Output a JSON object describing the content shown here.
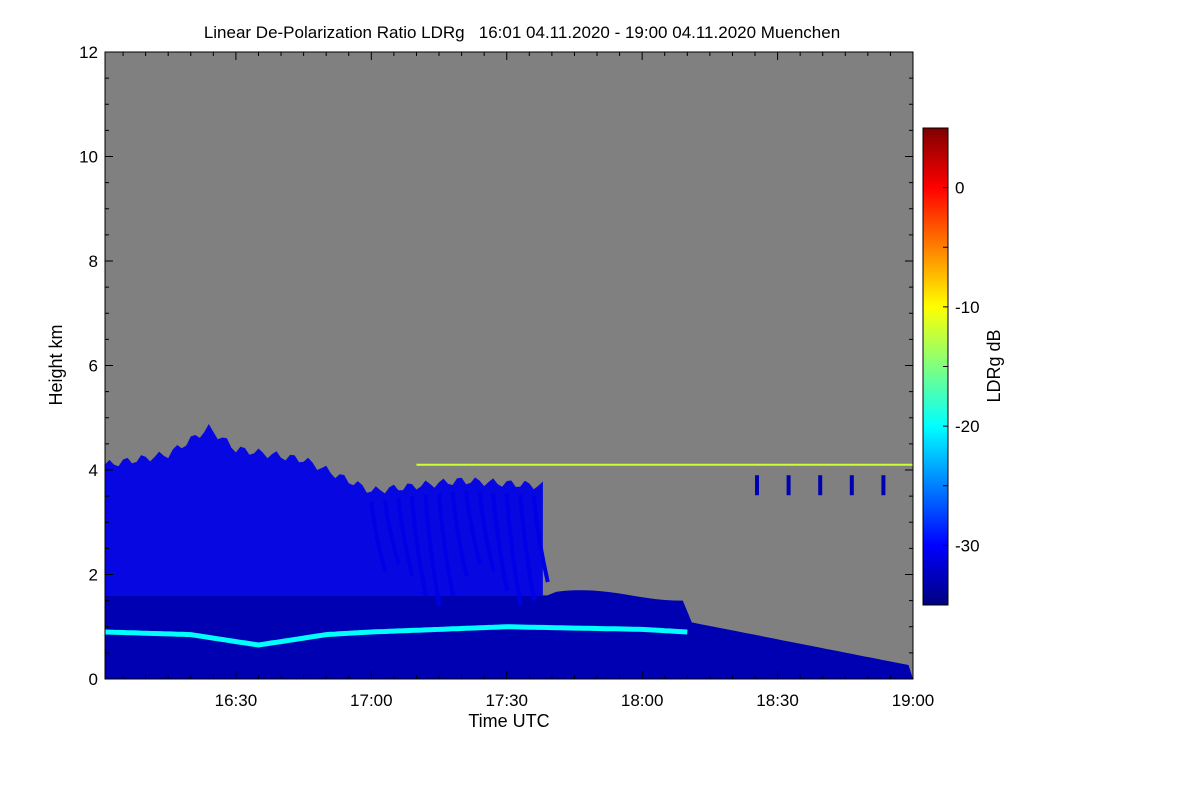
{
  "chart_data": {
    "type": "heatmap",
    "title": "Linear De-Polarization Ratio LDRg   16:01 04.11.2020 - 19:00 04.11.2020 Muenchen",
    "xlabel": "Time UTC",
    "ylabel": "Height km",
    "x_range": [
      "16:01",
      "19:00"
    ],
    "x_ticks": [
      "16:30",
      "17:00",
      "17:30",
      "18:00",
      "18:30",
      "19:00"
    ],
    "ylim": [
      0,
      12
    ],
    "y_ticks": [
      "0",
      "2",
      "4",
      "6",
      "8",
      "10",
      "12"
    ],
    "colorbar": {
      "label": "LDRg dB",
      "range": [
        -35,
        5
      ],
      "ticks": [
        "0",
        "-10",
        "-20",
        "-30"
      ],
      "colormap": "jet"
    },
    "no_data_color": "#808080",
    "features": {
      "boundary_layer_top_km": [
        {
          "time": "16:01",
          "height": 0.9
        },
        {
          "time": "16:20",
          "height": 0.85
        },
        {
          "time": "16:35",
          "height": 0.65
        },
        {
          "time": "16:50",
          "height": 0.85
        },
        {
          "time": "17:00",
          "height": 0.9
        },
        {
          "time": "17:30",
          "height": 1.0
        },
        {
          "time": "18:00",
          "height": 0.95
        },
        {
          "time": "18:10",
          "height": 0.9
        }
      ],
      "boundary_layer_ldr_db": -20,
      "cloud_top_km": [
        {
          "time": "16:01",
          "height": 4.1
        },
        {
          "time": "16:15",
          "height": 4.3
        },
        {
          "time": "16:24",
          "height": 4.8
        },
        {
          "time": "16:30",
          "height": 4.4
        },
        {
          "time": "16:45",
          "height": 4.2
        },
        {
          "time": "17:00",
          "height": 3.6
        },
        {
          "time": "17:20",
          "height": 3.8
        },
        {
          "time": "17:38",
          "height": 3.7
        }
      ],
      "cloud_ldr_db": -31,
      "elevated_layer_km": 4.1,
      "elevated_layer_time_range": [
        "17:10",
        "19:00"
      ]
    }
  }
}
